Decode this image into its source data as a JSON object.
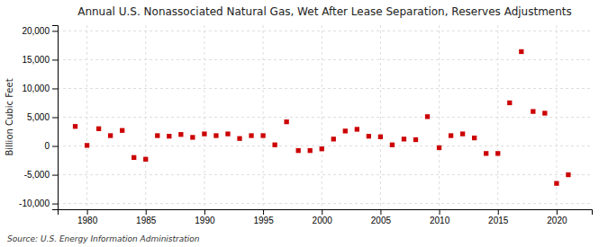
{
  "chart_data": {
    "type": "scatter",
    "title": "Annual U.S. Nonassociated Natural Gas, Wet After Lease Separation, Reserves Adjustments",
    "ylabel": "Billion Cubic Feet",
    "annotations": [
      "Source: U.S. Energy Information Administration"
    ],
    "color": "#cc0000",
    "marker": "square",
    "grid": true,
    "xlim": [
      1977.5,
      2023
    ],
    "ylim": [
      -11000,
      21000
    ],
    "xticks": [
      1980,
      1985,
      1990,
      1995,
      2000,
      2005,
      2010,
      2015,
      2020
    ],
    "yticks": [
      {
        "value": -10000,
        "label": "-10,000"
      },
      {
        "value": -5000,
        "label": "-5,000"
      },
      0,
      {
        "value": 5000,
        "label": "5,000"
      },
      {
        "value": 10000,
        "label": "10,000"
      },
      {
        "value": 15000,
        "label": "15,000"
      },
      {
        "value": 20000,
        "label": "20,000"
      }
    ],
    "x": [
      1979,
      1980,
      1981,
      1982,
      1983,
      1984,
      1985,
      1986,
      1987,
      1988,
      1989,
      1990,
      1991,
      1992,
      1993,
      1994,
      1995,
      1996,
      1997,
      1998,
      1999,
      2000,
      2001,
      2002,
      2003,
      2004,
      2005,
      2006,
      2007,
      2008,
      2009,
      2010,
      2011,
      2012,
      2013,
      2014,
      2015,
      2016,
      2017,
      2018,
      2019,
      2020,
      2021
    ],
    "values": [
      3400,
      100,
      3000,
      1800,
      2700,
      -2000,
      -2300,
      1800,
      1700,
      2000,
      1500,
      2100,
      1800,
      2100,
      1300,
      1800,
      1800,
      200,
      4200,
      -800,
      -800,
      -500,
      1200,
      2600,
      2900,
      1700,
      1600,
      200,
      1200,
      1100,
      5100,
      -300,
      1800,
      2100,
      1400,
      -1300,
      -1300,
      7500,
      16400,
      6000,
      5700,
      -6500,
      -5000
    ]
  }
}
